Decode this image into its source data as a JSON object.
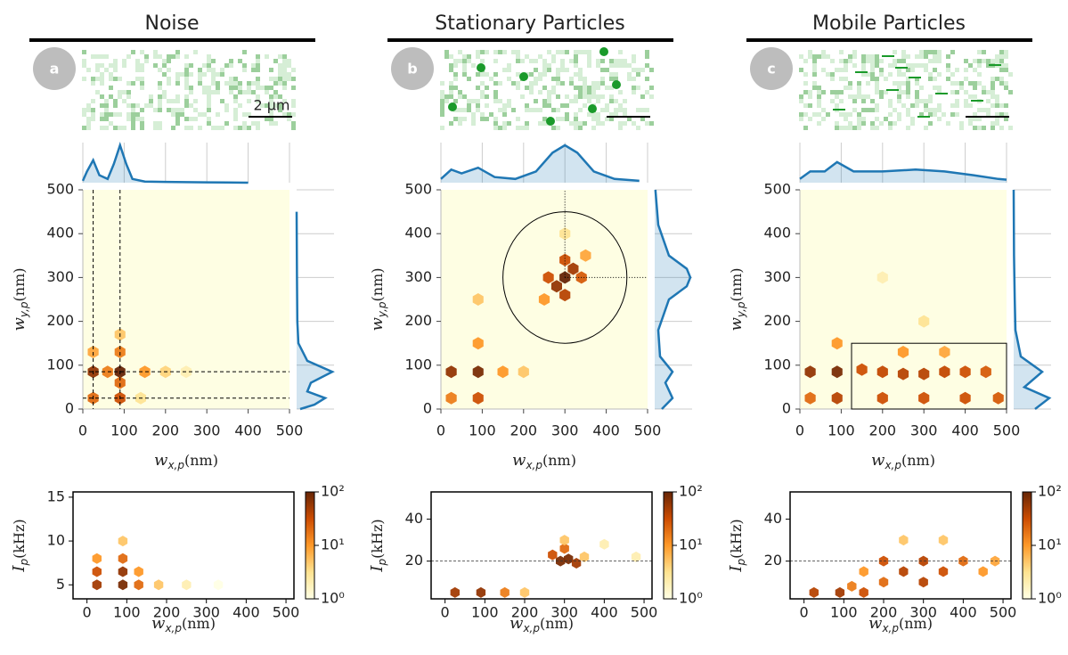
{
  "chart_data": [
    {
      "type": "hexbin",
      "title": "Noise",
      "panel_label": "a",
      "scale_bar_label": "2 µm",
      "xlabel": {
        "symbol": "w",
        "subscript": "x,p",
        "unit": "(nm)"
      },
      "ylabel": {
        "symbol": "w",
        "subscript": "y,p",
        "unit": "(nm)"
      },
      "xlim": [
        0,
        500
      ],
      "ylim": [
        0,
        500
      ],
      "xticks": [
        0,
        100,
        200,
        300,
        400,
        500
      ],
      "yticks": [
        0,
        100,
        200,
        300,
        400,
        500
      ],
      "x": [
        25,
        90,
        25,
        90,
        90,
        90,
        25,
        150,
        200,
        250,
        140,
        90,
        60
      ],
      "y": [
        85,
        85,
        25,
        25,
        130,
        170,
        130,
        85,
        85,
        85,
        25,
        60,
        85
      ],
      "counts": [
        60,
        100,
        20,
        30,
        15,
        5,
        8,
        10,
        4,
        2,
        3,
        20,
        15
      ],
      "cmap": [
        "#ffffe5",
        "#fee391",
        "#fe9929",
        "#cc4c02",
        "#662506"
      ],
      "clim": [
        1,
        100
      ],
      "vlines": [
        25,
        90
      ],
      "hlines": [
        25,
        85
      ],
      "top_marginal": {
        "x": [
          0,
          10,
          25,
          40,
          60,
          75,
          90,
          105,
          120,
          150,
          200,
          300,
          400
        ],
        "values": [
          0.05,
          0.3,
          0.6,
          0.2,
          0.1,
          0.5,
          1.0,
          0.5,
          0.1,
          0.03,
          0.02,
          0.01,
          0
        ],
        "color": "#1f77b4"
      },
      "right_marginal": {
        "y": [
          0,
          10,
          25,
          40,
          60,
          85,
          110,
          150,
          200,
          300,
          450
        ],
        "values": [
          0.1,
          0.5,
          0.8,
          0.3,
          0.4,
          1.0,
          0.3,
          0.05,
          0.02,
          0.01,
          0
        ],
        "color": "#1f77b4"
      }
    },
    {
      "type": "hexbin",
      "xlabel": {
        "symbol": "w",
        "subscript": "x,p",
        "unit": "(nm)"
      },
      "ylabel": {
        "symbol": "I",
        "subscript": "p",
        "unit": "(kHz)"
      },
      "xlim": [
        -35,
        520
      ],
      "ylim": [
        3.4,
        15.6
      ],
      "xticks": [
        0,
        100,
        200,
        300,
        400,
        500
      ],
      "yticks": [
        5,
        10,
        15
      ],
      "x": [
        25,
        25,
        25,
        90,
        90,
        90,
        130,
        130,
        180,
        250,
        90,
        330
      ],
      "y": [
        5,
        6.5,
        8,
        5,
        6.5,
        8,
        5,
        6.5,
        5,
        5,
        10,
        5
      ],
      "counts": [
        50,
        30,
        10,
        80,
        60,
        20,
        20,
        10,
        5,
        2,
        5,
        1
      ],
      "cmap": [
        "#ffffe5",
        "#fee391",
        "#fe9929",
        "#cc4c02",
        "#662506"
      ],
      "clim": [
        1,
        100
      ],
      "colorbar_ticks": [
        {
          "value": 1,
          "label": "10⁰"
        },
        {
          "value": 10,
          "label": "10¹"
        },
        {
          "value": 100,
          "label": "10²"
        }
      ]
    },
    {
      "type": "hexbin",
      "title": "Stationary Particles",
      "panel_label": "b",
      "xlabel": {
        "symbol": "w",
        "subscript": "x,p",
        "unit": "(nm)"
      },
      "ylabel": {
        "symbol": "w",
        "subscript": "y,p",
        "unit": "(nm)"
      },
      "xlim": [
        0,
        500
      ],
      "ylim": [
        0,
        500
      ],
      "xticks": [
        0,
        100,
        200,
        300,
        400,
        500
      ],
      "yticks": [
        0,
        100,
        200,
        300,
        400,
        500
      ],
      "x": [
        300,
        280,
        320,
        300,
        300,
        260,
        340,
        250,
        350,
        300,
        25,
        90,
        25,
        90,
        90,
        90,
        150,
        200
      ],
      "y": [
        300,
        280,
        320,
        260,
        340,
        300,
        300,
        250,
        350,
        400,
        85,
        85,
        25,
        25,
        150,
        250,
        85,
        85
      ],
      "counts": [
        100,
        60,
        50,
        40,
        30,
        30,
        25,
        10,
        8,
        3,
        60,
        80,
        15,
        30,
        10,
        5,
        10,
        5
      ],
      "cmap": [
        "#ffffe5",
        "#fee391",
        "#fe9929",
        "#cc4c02",
        "#662506"
      ],
      "clim": [
        1,
        100
      ],
      "circle": {
        "center": [
          300,
          300
        ],
        "radius": 150
      },
      "top_marginal": {
        "x": [
          0,
          25,
          50,
          90,
          130,
          180,
          230,
          270,
          300,
          330,
          370,
          420,
          480
        ],
        "values": [
          0.1,
          0.35,
          0.25,
          0.4,
          0.15,
          0.1,
          0.3,
          0.8,
          1.0,
          0.8,
          0.3,
          0.1,
          0.05
        ],
        "color": "#1f77b4"
      },
      "right_marginal": {
        "y": [
          0,
          25,
          60,
          85,
          120,
          180,
          250,
          280,
          300,
          320,
          350,
          420,
          500
        ],
        "values": [
          0.2,
          0.5,
          0.3,
          0.5,
          0.15,
          0.1,
          0.4,
          0.9,
          1.0,
          0.9,
          0.4,
          0.1,
          0.02
        ],
        "color": "#1f77b4"
      }
    },
    {
      "type": "hexbin",
      "xlabel": {
        "symbol": "w",
        "subscript": "x,p",
        "unit": "(nm)"
      },
      "ylabel": {
        "symbol": "I",
        "subscript": "p",
        "unit": "(kHz)"
      },
      "xlim": [
        -35,
        520
      ],
      "ylim": [
        2,
        53
      ],
      "xticks": [
        0,
        100,
        200,
        300,
        400,
        500
      ],
      "yticks": [
        20,
        40
      ],
      "x": [
        25,
        90,
        150,
        200,
        290,
        310,
        330,
        270,
        300,
        350,
        400,
        300,
        480
      ],
      "y": [
        5,
        5,
        5,
        5,
        20,
        21,
        19,
        23,
        26,
        22,
        28,
        30,
        22
      ],
      "counts": [
        50,
        60,
        15,
        5,
        80,
        80,
        50,
        30,
        20,
        5,
        2,
        5,
        2
      ],
      "cmap": [
        "#ffffe5",
        "#fee391",
        "#fe9929",
        "#cc4c02",
        "#662506"
      ],
      "clim": [
        1,
        100
      ],
      "hline": 20,
      "colorbar_ticks": [
        {
          "value": 1,
          "label": "10⁰"
        },
        {
          "value": 10,
          "label": "10¹"
        },
        {
          "value": 100,
          "label": "10²"
        }
      ]
    },
    {
      "type": "hexbin",
      "title": "Mobile Particles",
      "panel_label": "c",
      "xlabel": {
        "symbol": "w",
        "subscript": "x,p",
        "unit": "(nm)"
      },
      "ylabel": {
        "symbol": "w",
        "subscript": "y,p",
        "unit": "(nm)"
      },
      "xlim": [
        0,
        500
      ],
      "ylim": [
        0,
        500
      ],
      "xticks": [
        0,
        100,
        200,
        300,
        400,
        500
      ],
      "yticks": [
        0,
        100,
        200,
        300,
        400,
        500
      ],
      "x": [
        25,
        90,
        25,
        90,
        150,
        200,
        250,
        300,
        350,
        400,
        450,
        200,
        300,
        400,
        480,
        250,
        350,
        300,
        200,
        90
      ],
      "y": [
        85,
        85,
        25,
        25,
        90,
        85,
        80,
        80,
        85,
        85,
        85,
        25,
        25,
        25,
        25,
        130,
        130,
        200,
        300,
        150
      ],
      "counts": [
        60,
        80,
        20,
        40,
        30,
        35,
        40,
        40,
        35,
        30,
        25,
        30,
        30,
        30,
        25,
        10,
        8,
        3,
        2,
        10
      ],
      "cmap": [
        "#ffffe5",
        "#fee391",
        "#fe9929",
        "#cc4c02",
        "#662506"
      ],
      "clim": [
        1,
        100
      ],
      "rectangle": {
        "x": [
          125,
          500
        ],
        "y": [
          0,
          150
        ]
      },
      "top_marginal": {
        "x": [
          0,
          25,
          60,
          90,
          130,
          200,
          280,
          350,
          420,
          480,
          500
        ],
        "values": [
          0.1,
          0.3,
          0.3,
          0.55,
          0.3,
          0.3,
          0.35,
          0.3,
          0.2,
          0.1,
          0.08
        ],
        "color": "#1f77b4"
      },
      "right_marginal": {
        "y": [
          0,
          25,
          50,
          85,
          120,
          180,
          250,
          350,
          500
        ],
        "values": [
          0.6,
          1.0,
          0.3,
          0.8,
          0.2,
          0.05,
          0.03,
          0.01,
          0
        ],
        "color": "#1f77b4"
      }
    },
    {
      "type": "hexbin",
      "xlabel": {
        "symbol": "w",
        "subscript": "x,p",
        "unit": "(nm)"
      },
      "ylabel": {
        "symbol": "I",
        "subscript": "p",
        "unit": "(kHz)"
      },
      "xlim": [
        -35,
        520
      ],
      "ylim": [
        2,
        53
      ],
      "xticks": [
        0,
        100,
        200,
        300,
        400,
        500
      ],
      "yticks": [
        20,
        40
      ],
      "x": [
        25,
        90,
        150,
        200,
        250,
        300,
        350,
        400,
        200,
        300,
        450,
        250,
        350,
        480,
        150,
        120
      ],
      "y": [
        5,
        5,
        5,
        10,
        15,
        20,
        15,
        20,
        20,
        10,
        15,
        30,
        30,
        20,
        15,
        8
      ],
      "counts": [
        40,
        50,
        30,
        20,
        40,
        40,
        30,
        20,
        30,
        40,
        10,
        5,
        5,
        8,
        10,
        15
      ],
      "cmap": [
        "#ffffe5",
        "#fee391",
        "#fe9929",
        "#cc4c02",
        "#662506"
      ],
      "clim": [
        1,
        100
      ],
      "hline": 20,
      "colorbar_ticks": [
        {
          "value": 1,
          "label": "10⁰"
        },
        {
          "value": 10,
          "label": "10¹"
        },
        {
          "value": 100,
          "label": "10²"
        }
      ]
    }
  ]
}
